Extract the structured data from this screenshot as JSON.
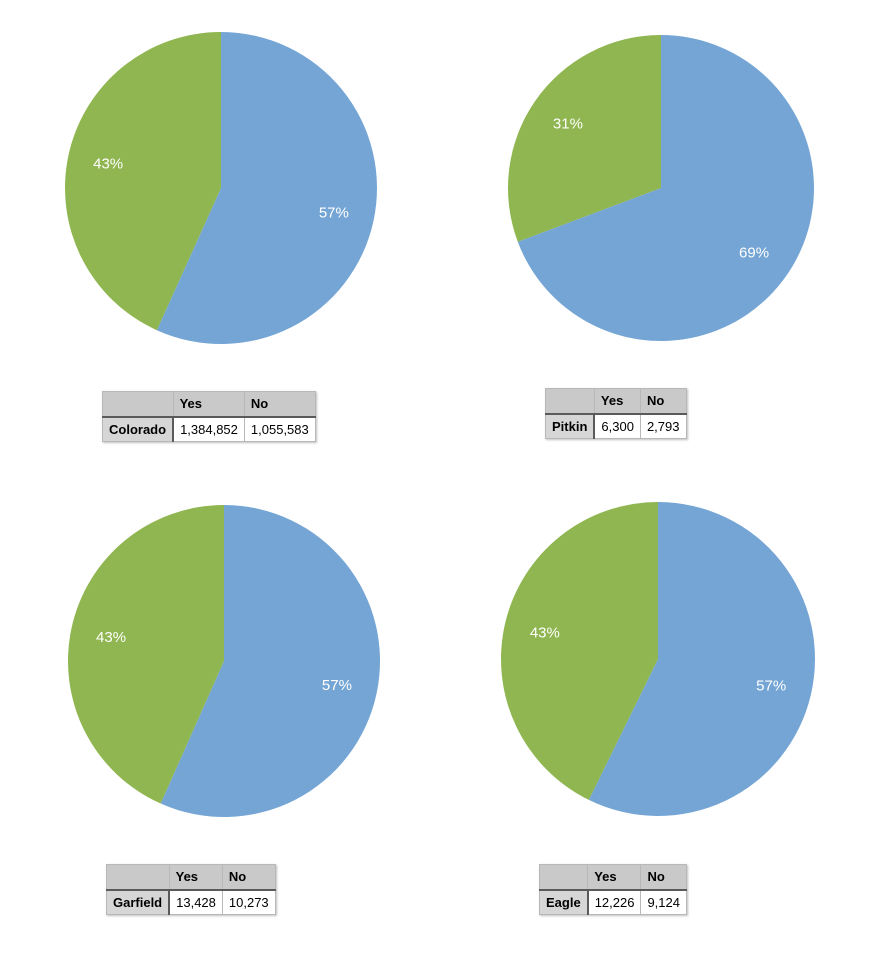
{
  "colors": {
    "yes": "#75a5d4",
    "no": "#8fb650"
  },
  "chart_data": [
    {
      "type": "pie",
      "categories": [
        "Yes",
        "No"
      ],
      "values": [
        1384852,
        1055583
      ],
      "slice_labels": [
        "57%",
        "43%"
      ],
      "table": {
        "headers": [
          "",
          "Yes",
          "No"
        ],
        "row_label": "Colorado",
        "cells": [
          "1,384,852",
          "1,055,583"
        ]
      }
    },
    {
      "type": "pie",
      "categories": [
        "Yes",
        "No"
      ],
      "values": [
        6300,
        2793
      ],
      "slice_labels": [
        "69%",
        "31%"
      ],
      "table": {
        "headers": [
          "",
          "Yes",
          "No"
        ],
        "row_label": "Pitkin",
        "cells": [
          "6,300",
          "2,793"
        ]
      }
    },
    {
      "type": "pie",
      "categories": [
        "Yes",
        "No"
      ],
      "values": [
        13428,
        10273
      ],
      "slice_labels": [
        "57%",
        "43%"
      ],
      "table": {
        "headers": [
          "",
          "Yes",
          "No"
        ],
        "row_label": "Garfield",
        "cells": [
          "13,428",
          "10,273"
        ]
      }
    },
    {
      "type": "pie",
      "categories": [
        "Yes",
        "No"
      ],
      "values": [
        12226,
        9124
      ],
      "slice_labels": [
        "57%",
        "43%"
      ],
      "table": {
        "headers": [
          "",
          "Yes",
          "No"
        ],
        "row_label": "Eagle",
        "cells": [
          "12,226",
          "9,124"
        ]
      }
    }
  ]
}
